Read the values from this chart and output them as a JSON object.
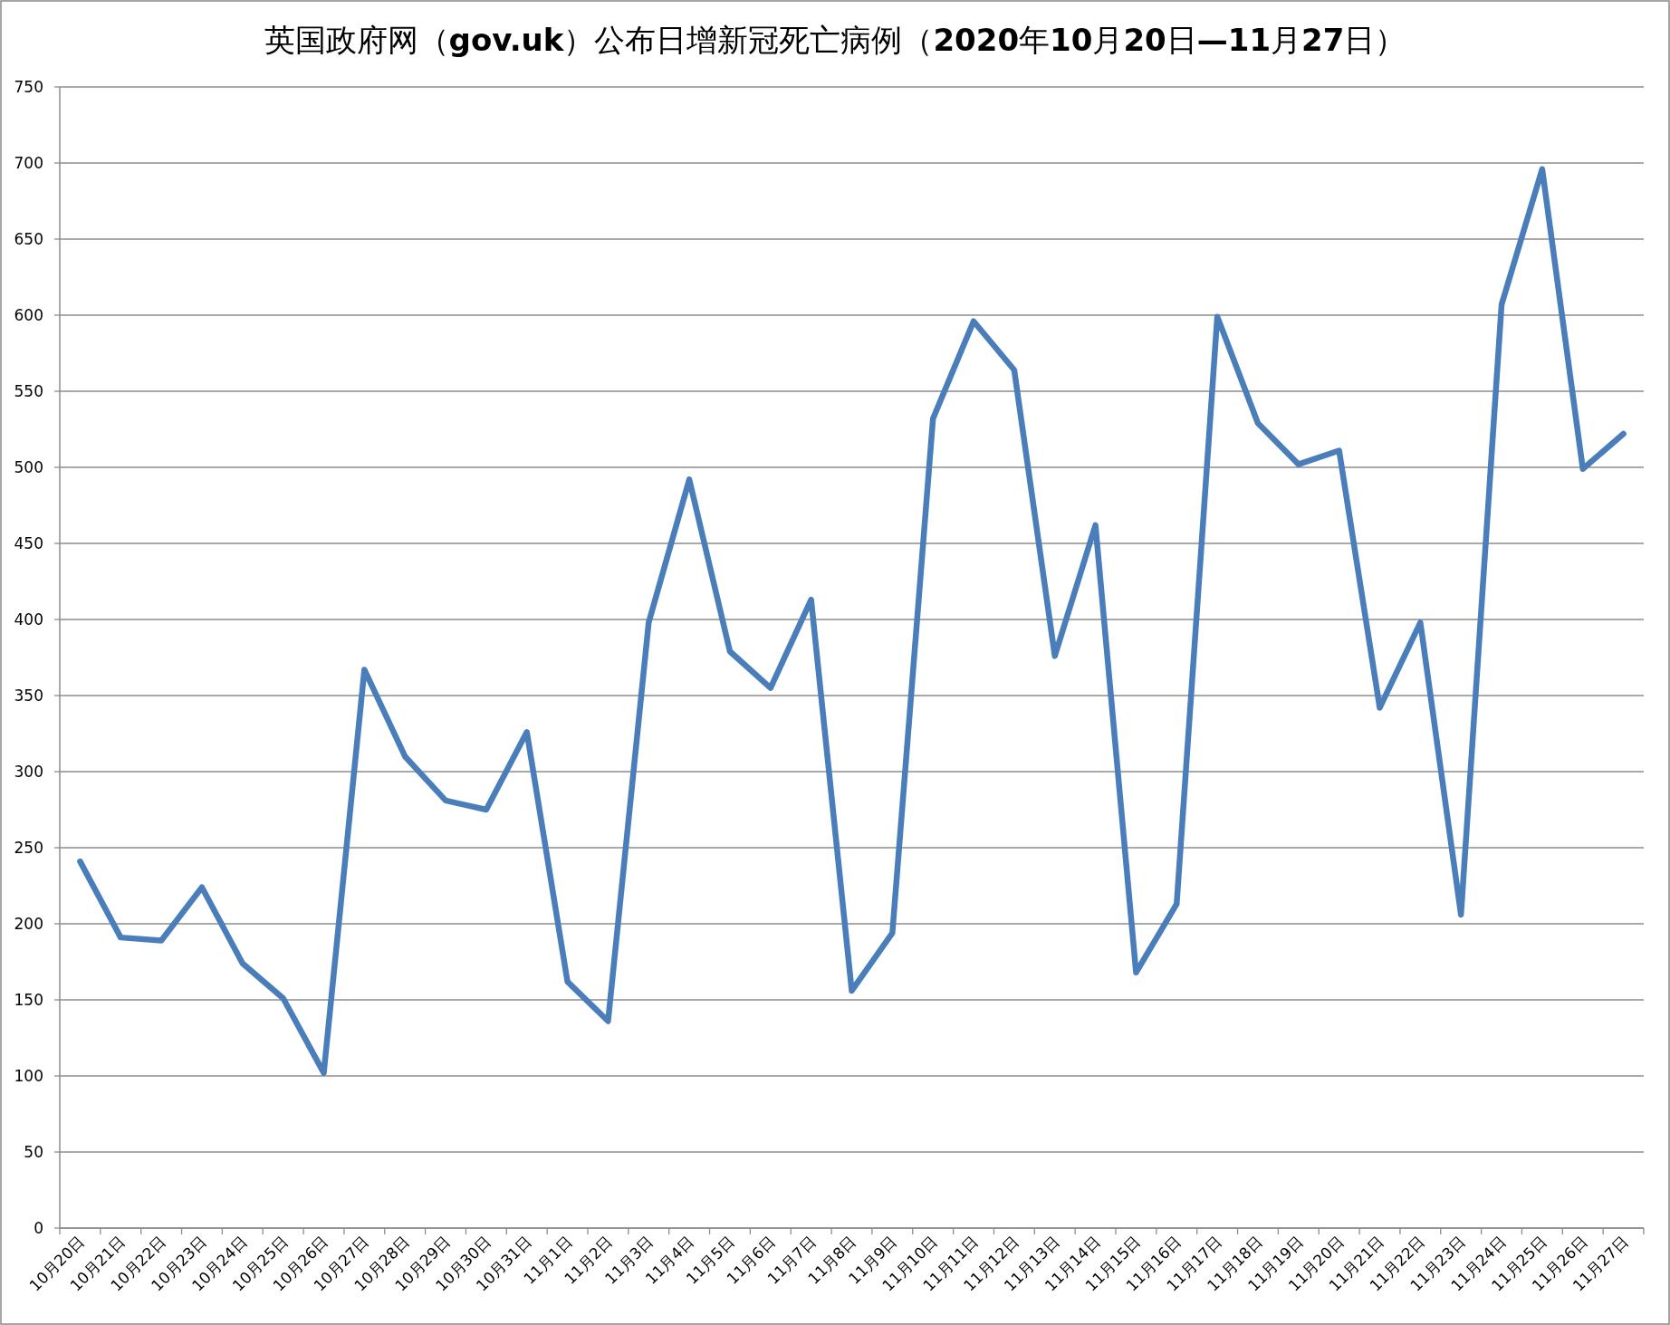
{
  "chart_data": {
    "type": "line",
    "title": "英国政府网（**gov.uk**）公布日增新冠死亡病例（**2020**年**10**月**20**日**—11**月**27**日）",
    "categories": [
      "10月20日",
      "10月21日",
      "10月22日",
      "10月23日",
      "10月24日",
      "10月25日",
      "10月26日",
      "10月27日",
      "10月28日",
      "10月29日",
      "10月30日",
      "10月31日",
      "11月1日",
      "11月2日",
      "11月3日",
      "11月4日",
      "11月5日",
      "11月6日",
      "11月7日",
      "11月8日",
      "11月9日",
      "11月10日",
      "11月11日",
      "11月12日",
      "11月13日",
      "11月14日",
      "11月15日",
      "11月16日",
      "11月17日",
      "11月18日",
      "11月19日",
      "11月20日",
      "11月21日",
      "11月22日",
      "11月23日",
      "11月24日",
      "11月25日",
      "11月26日",
      "11月27日"
    ],
    "values": [
      241,
      191,
      189,
      224,
      174,
      151,
      102,
      367,
      310,
      281,
      275,
      326,
      162,
      136,
      398,
      492,
      379,
      355,
      413,
      156,
      194,
      532,
      596,
      564,
      376,
      462,
      168,
      213,
      599,
      529,
      502,
      511,
      342,
      398,
      206,
      607,
      696,
      499,
      522
    ],
    "color": "#4a7ebb",
    "ylim": [
      0,
      750
    ],
    "yticks": [
      0,
      50,
      100,
      150,
      200,
      250,
      300,
      350,
      400,
      450,
      500,
      550,
      600,
      650,
      700,
      750
    ],
    "grid": "y"
  }
}
